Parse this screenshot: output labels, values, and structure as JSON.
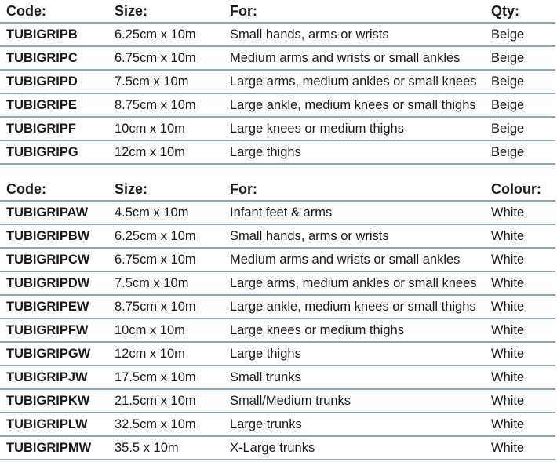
{
  "tables": [
    {
      "headers": [
        "Code:",
        "Size:",
        "For:",
        "Qty:"
      ],
      "rows": [
        [
          "TUBIGRIPB",
          "6.25cm x 10m",
          "Small hands, arms or wrists",
          "Beige"
        ],
        [
          "TUBIGRIPC",
          "6.75cm x 10m",
          "Medium arms and wrists or small ankles",
          "Beige"
        ],
        [
          "TUBIGRIPD",
          "7.5cm x 10m",
          "Large arms, medium ankles or small knees",
          "Beige"
        ],
        [
          "TUBIGRIPE",
          "8.75cm x 10m",
          "Large ankle, medium knees or small thighs",
          "Beige"
        ],
        [
          "TUBIGRIPF",
          "10cm x 10m",
          "Large knees or medium thighs",
          "Beige"
        ],
        [
          "TUBIGRIPG",
          "12cm x 10m",
          "Large thighs",
          "Beige"
        ]
      ]
    },
    {
      "headers": [
        "Code:",
        "Size:",
        "For:",
        "Colour:"
      ],
      "rows": [
        [
          "TUBIGRIPAW",
          "4.5cm x 10m",
          "Infant feet & arms",
          "White"
        ],
        [
          "TUBIGRIPBW",
          "6.25cm x 10m",
          "Small hands, arms or wrists",
          "White"
        ],
        [
          "TUBIGRIPCW",
          "6.75cm x 10m",
          "Medium arms and wrists or small ankles",
          "White"
        ],
        [
          "TUBIGRIPDW",
          "7.5cm x 10m",
          "Large arms, medium ankles or small knees",
          "White"
        ],
        [
          "TUBIGRIPEW",
          "8.75cm x 10m",
          "Large ankle, medium knees or small thighs",
          "White"
        ],
        [
          "TUBIGRIPFW",
          "10cm x 10m",
          "Large knees or medium thighs",
          "White"
        ],
        [
          "TUBIGRIPGW",
          "12cm x 10m",
          "Large thighs",
          "White"
        ],
        [
          "TUBIGRIPJW",
          "17.5cm x 10m",
          "Small trunks",
          "White"
        ],
        [
          "TUBIGRIPKW",
          "21.5cm x 10m",
          "Small/Medium trunks",
          "White"
        ],
        [
          "TUBIGRIPLW",
          "32.5cm x 10m",
          "Large trunks",
          "White"
        ],
        [
          "TUBIGRIPMW",
          "35.5 x 10m",
          "X-Large trunks",
          "White"
        ]
      ]
    }
  ],
  "colors": {
    "rule": "#8fa3b8",
    "text": "#1a1a1a"
  }
}
